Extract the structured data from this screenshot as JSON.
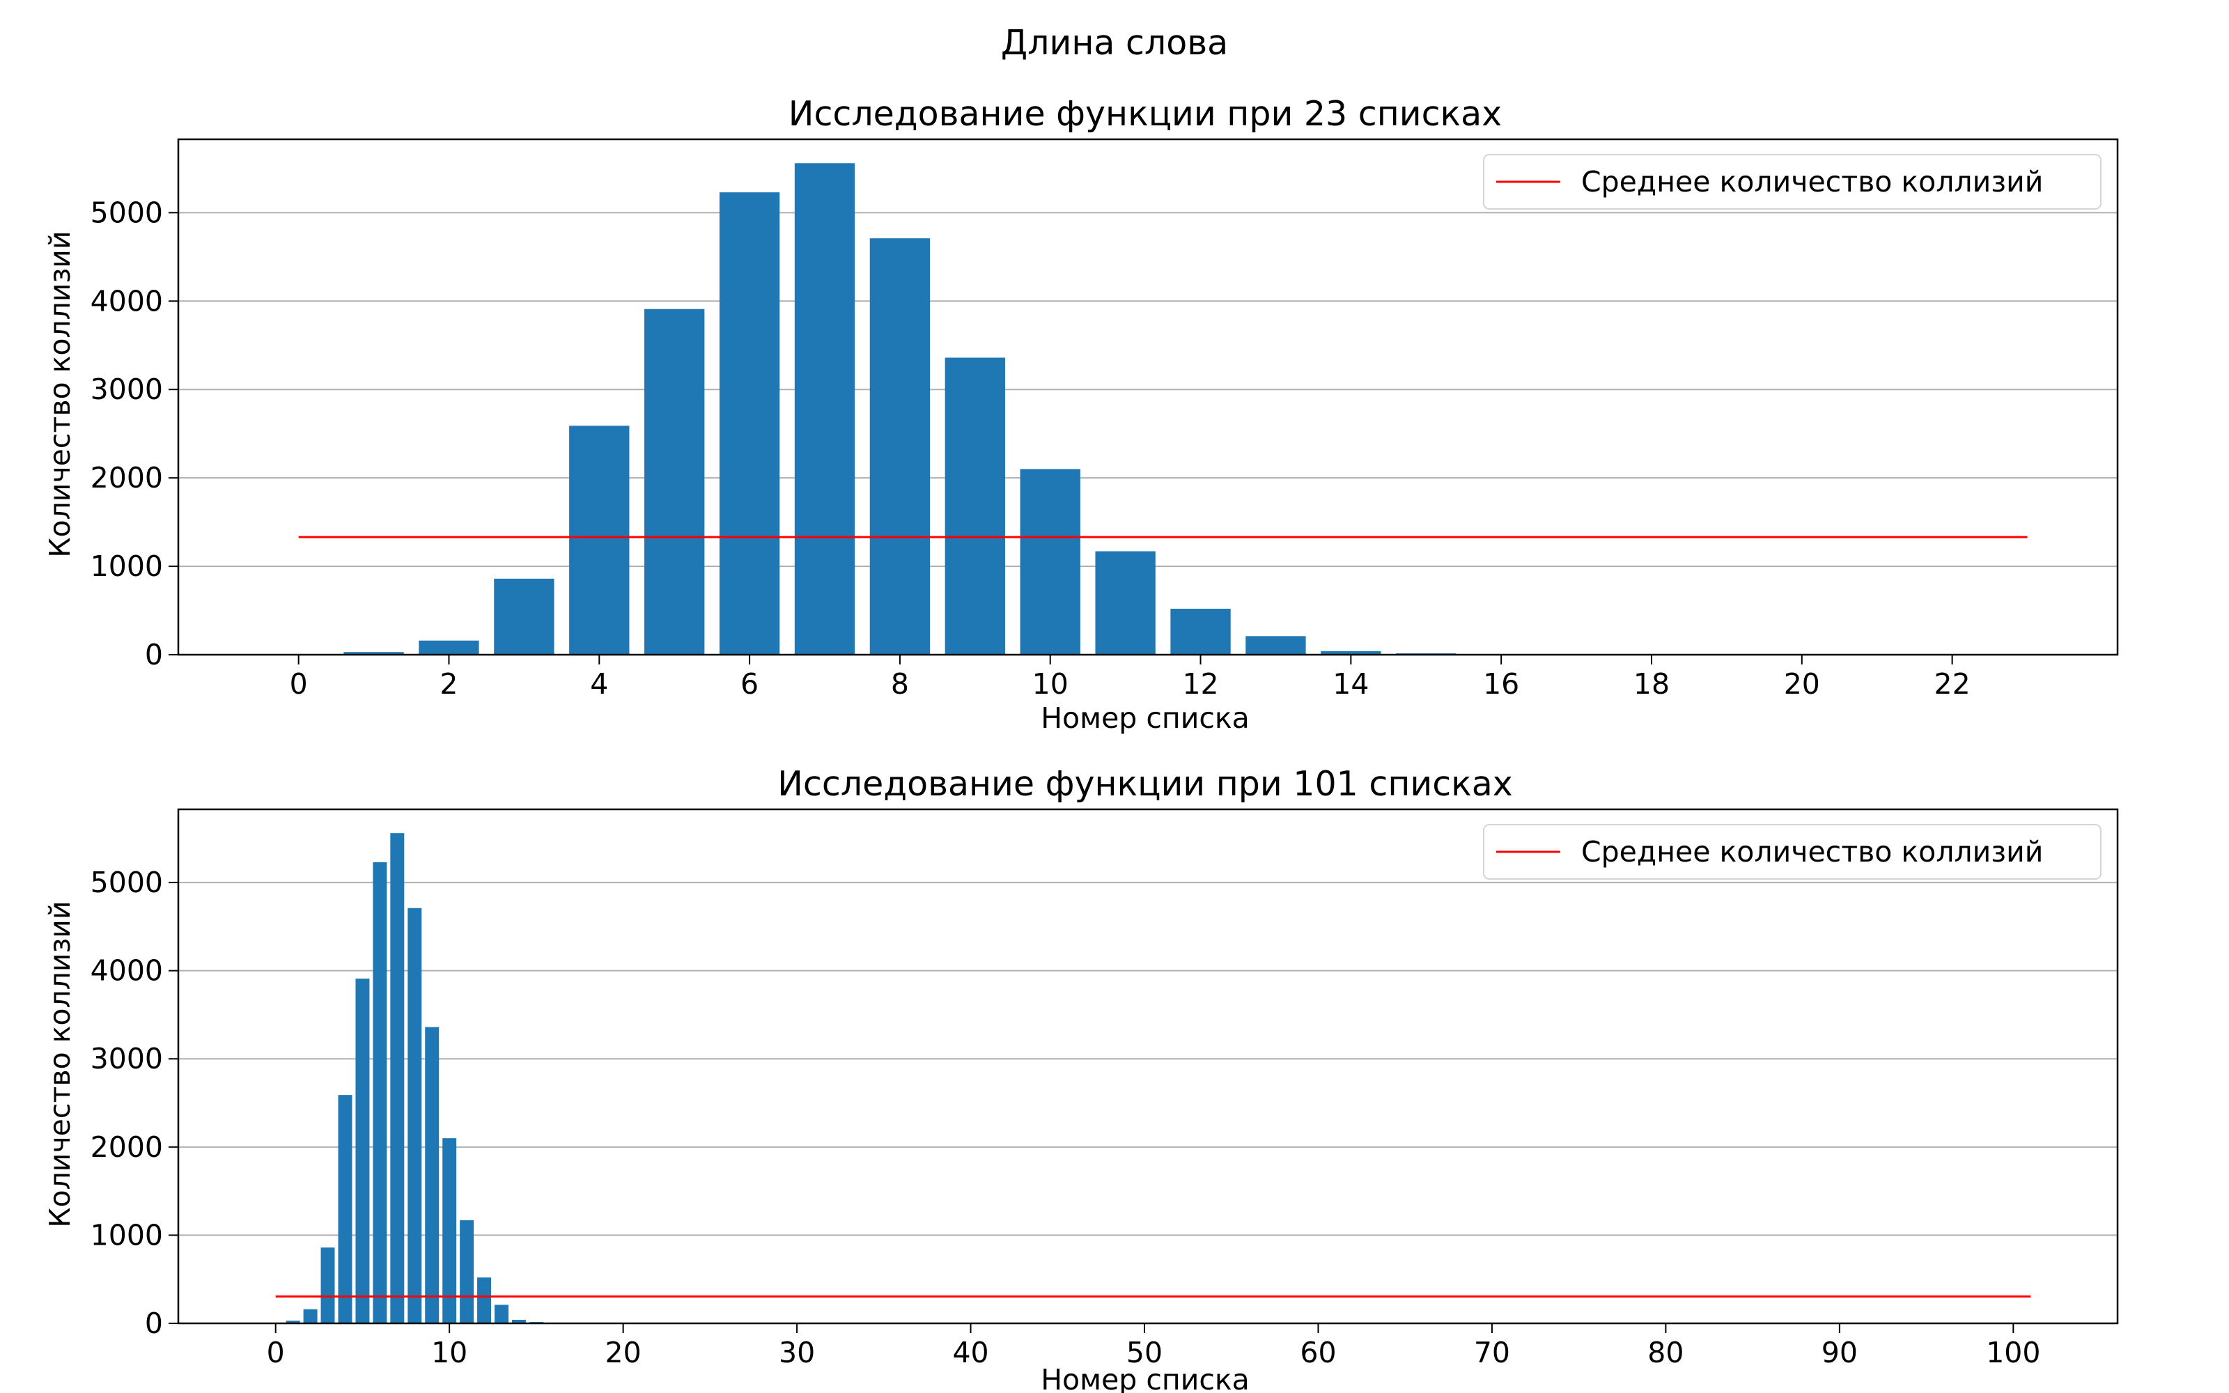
{
  "suptitle": "Длина слова",
  "colors": {
    "bar": "#1f77b4",
    "mean_line": "#ff0000",
    "grid": "#b0b0b0"
  },
  "chart_data": [
    {
      "type": "bar",
      "title": "Исследование функции при 23 списках",
      "xlabel": "Номер списка",
      "ylabel": "Количество коллизий",
      "xlim": [
        -1.6,
        24.2
      ],
      "ylim": [
        0,
        5830
      ],
      "xticks": [
        0,
        2,
        4,
        6,
        8,
        10,
        12,
        14,
        16,
        18,
        20,
        22
      ],
      "yticks": [
        0,
        1000,
        2000,
        3000,
        4000,
        5000
      ],
      "grid": "y",
      "legend": "top-right",
      "x": [
        0,
        1,
        2,
        3,
        4,
        5,
        6,
        7,
        8,
        9,
        10,
        11,
        12,
        13,
        14,
        15,
        16,
        17,
        18,
        19,
        20,
        21,
        22
      ],
      "values": [
        0,
        30,
        160,
        860,
        2590,
        3910,
        5230,
        5560,
        4710,
        3360,
        2100,
        1170,
        520,
        210,
        40,
        15,
        5,
        2,
        0,
        0,
        0,
        0,
        0
      ],
      "mean_line": {
        "label": "Среднее количество коллизий",
        "value": 1330,
        "x_range": [
          0,
          23
        ]
      }
    },
    {
      "type": "bar",
      "title": "Исследование функции при 101 списках",
      "xlabel": "Номер списка",
      "ylabel": "Количество коллизий",
      "xlim": [
        -5.6,
        106.0
      ],
      "ylim": [
        0,
        5830
      ],
      "xticks": [
        0,
        10,
        20,
        30,
        40,
        50,
        60,
        70,
        80,
        90,
        100
      ],
      "yticks": [
        0,
        1000,
        2000,
        3000,
        4000,
        5000
      ],
      "grid": "y",
      "legend": "top-right",
      "x": [
        0,
        1,
        2,
        3,
        4,
        5,
        6,
        7,
        8,
        9,
        10,
        11,
        12,
        13,
        14,
        15,
        16,
        17,
        18,
        19,
        20
      ],
      "values": [
        0,
        30,
        160,
        860,
        2590,
        3910,
        5230,
        5560,
        4710,
        3360,
        2100,
        1170,
        520,
        210,
        40,
        15,
        5,
        2,
        0,
        0,
        0
      ],
      "mean_line": {
        "label": "Среднее количество коллизий",
        "value": 305,
        "x_range": [
          0,
          101
        ]
      }
    }
  ]
}
